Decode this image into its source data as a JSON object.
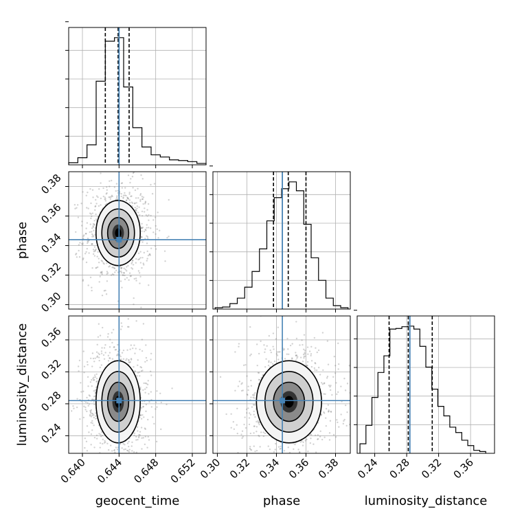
{
  "chart_data": {
    "type": "corner",
    "parameters": [
      "geocent_time",
      "phase",
      "luminosity_distance"
    ],
    "injection": {
      "geocent_time": 0.644,
      "phase": 0.344,
      "luminosity_distance": 0.284
    },
    "colors": {
      "injection": "#4682b4",
      "hist": "#000000",
      "grid": "#b0b0b0",
      "scatter": "#7f7f7f"
    },
    "grid": true,
    "axes": {
      "geocent_time": {
        "range": [
          0.6385,
          0.6535
        ],
        "ticks": [
          0.64,
          0.644,
          0.648,
          0.652
        ],
        "tick_labels": [
          "0.640",
          "0.644",
          "0.648",
          "0.652"
        ]
      },
      "phase": {
        "range": [
          0.297,
          0.39
        ],
        "ticks": [
          0.3,
          0.32,
          0.34,
          0.36,
          0.38
        ],
        "tick_labels": [
          "0.30",
          "0.32",
          "0.34",
          "0.36",
          "0.38"
        ]
      },
      "luminosity_distance": {
        "range": [
          0.218,
          0.39
        ],
        "ticks": [
          0.24,
          0.28,
          0.32,
          0.36
        ],
        "tick_labels": [
          "0.24",
          "0.28",
          "0.32",
          "0.36"
        ]
      }
    },
    "marginals": {
      "geocent_time": {
        "bin_edges": [
          0.6385,
          0.6395,
          0.6405,
          0.6415,
          0.6425,
          0.6435,
          0.6445,
          0.6455,
          0.6465,
          0.6475,
          0.6485,
          0.6495,
          0.6505,
          0.6515,
          0.6525,
          0.6535
        ],
        "counts": [
          0.3,
          1.0,
          2.8,
          11.7,
          17.3,
          17.8,
          10.9,
          5.2,
          2.5,
          1.4,
          1.1,
          0.7,
          0.6,
          0.45,
          0.2
        ],
        "quantiles": [
          0.6425,
          0.6439,
          0.6451
        ]
      },
      "phase": {
        "bin_edges": [
          0.2985,
          0.3035,
          0.3085,
          0.3135,
          0.3185,
          0.3235,
          0.3285,
          0.3335,
          0.3385,
          0.3435,
          0.3485,
          0.3535,
          0.3585,
          0.3635,
          0.3685,
          0.3735,
          0.3785,
          0.3835,
          0.3885
        ],
        "counts": [
          0.2,
          0.3,
          0.8,
          1.6,
          3.2,
          5.5,
          8.8,
          12.9,
          16.3,
          17.6,
          18.6,
          17.3,
          12.4,
          7.5,
          4.2,
          1.6,
          0.5,
          0.2
        ],
        "quantiles": [
          0.338,
          0.348,
          0.36
        ]
      },
      "luminosity_distance": {
        "bin_edges": [
          0.2215,
          0.229,
          0.2365,
          0.244,
          0.2515,
          0.259,
          0.2665,
          0.274,
          0.2815,
          0.289,
          0.2965,
          0.304,
          0.3115,
          0.319,
          0.3265,
          0.334,
          0.3415,
          0.349,
          0.3565,
          0.364,
          0.3715,
          0.379
        ],
        "counts": [
          1.6,
          4.7,
          9.4,
          13.6,
          16.4,
          20.9,
          21.0,
          21.3,
          21.4,
          20.9,
          18.0,
          14.5,
          10.8,
          7.9,
          6.3,
          4.4,
          3.5,
          2.2,
          1.3,
          0.5,
          0.3
        ],
        "quantiles": [
          0.258,
          0.282,
          0.312
        ]
      }
    }
  }
}
